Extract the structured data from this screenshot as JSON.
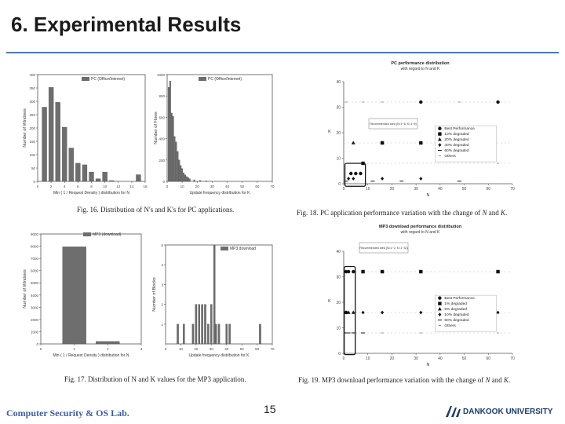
{
  "slide": {
    "title": "6. Experimental Results",
    "page_number": "15",
    "footer_left": "Computer Security & OS Lab.",
    "footer_right": "DANKOOK UNIVERSITY",
    "accent_color": "#4a79b6"
  },
  "captions": {
    "fig16": "Fig. 16.   Distribution of N's and K's for PC applications.",
    "fig17": "Fig. 17.   Distribution of N and K values for the MP3 application.",
    "fig18_prefix": "Fig. 18.   PC application performance variation with the change of ",
    "fig18_n": "N",
    "fig18_and": " and ",
    "fig18_k": "K",
    "fig18_end": ".",
    "fig19_prefix": "Fig. 19.   MP3 download performance variation with the change of ",
    "fig19_n": "N",
    "fig19_and": " and ",
    "fig19_k": "K",
    "fig19_end": "."
  },
  "chart_data": [
    {
      "id": "fig16a",
      "type": "bar",
      "legend": "PC (Office/Internet)",
      "ylabel": "Number of Windows",
      "xlabel": "Min ( 1 / Request Density ) distribution for N",
      "ylim": [
        0,
        400
      ],
      "yticks": [
        "0",
        "50",
        "100",
        "150",
        "200",
        "250",
        "300",
        "350",
        "400"
      ],
      "xticks": [
        "0",
        "2",
        "4",
        "6",
        "8",
        "10",
        "12",
        "14",
        "16"
      ],
      "x": [
        1,
        2,
        3,
        4,
        5,
        6,
        7,
        8,
        9,
        10,
        11,
        15
      ],
      "values": [
        278,
        352,
        296,
        203,
        125,
        68,
        62,
        35,
        10,
        35,
        3,
        25
      ]
    },
    {
      "id": "fig16b",
      "type": "bar",
      "legend": "PC (Office/Internet)",
      "ylabel": "Number of Flows",
      "xlabel": "Update frequency distribution for K",
      "ylim": [
        0,
        1000
      ],
      "yticks": [
        "0",
        "200",
        "400",
        "600",
        "800",
        "1000"
      ],
      "xticks": [
        "0",
        "10",
        "20",
        "30",
        "40",
        "50",
        "60",
        "70"
      ],
      "x": [
        1,
        2,
        3,
        4,
        5,
        6,
        7,
        8,
        9,
        10,
        11,
        12,
        13,
        14,
        15,
        18,
        22,
        26
      ],
      "values": [
        880,
        940,
        640,
        610,
        420,
        370,
        280,
        200,
        150,
        120,
        80,
        60,
        45,
        35,
        25,
        15,
        10,
        6
      ]
    },
    {
      "id": "fig17a",
      "type": "bar",
      "legend": "MP3 (download)",
      "ylabel": "Number of Windows",
      "xlabel": "Min ( 1 / Request Density ) distribution for N",
      "ylim": [
        0,
        9000
      ],
      "yticks": [
        "0",
        "1000",
        "2000",
        "3000",
        "4000",
        "5000",
        "6000",
        "7000",
        "8000",
        "9000"
      ],
      "xticks": [
        "0",
        "1",
        "2",
        "3"
      ],
      "x": [
        1,
        2
      ],
      "values": [
        7950,
        200
      ]
    },
    {
      "id": "fig17b",
      "type": "bar",
      "legend": "MP3 download",
      "ylabel": "Number of Blocks",
      "xlabel": "Update frequency distribution for K",
      "ylim": [
        0,
        5
      ],
      "yticks": [
        "1",
        "2",
        "3",
        "4",
        "5"
      ],
      "xticks": [
        "0",
        "10",
        "20",
        "30",
        "40",
        "50",
        "60",
        "70"
      ],
      "x": [
        8,
        12,
        18,
        20,
        22,
        24,
        26,
        28,
        30,
        32,
        33,
        35,
        40,
        42,
        62
      ],
      "values": [
        1,
        1,
        1,
        2,
        2,
        2,
        2,
        1,
        2,
        5,
        1,
        1,
        1,
        1,
        1
      ]
    },
    {
      "id": "fig18",
      "type": "scatter",
      "title": "PC performance distribution",
      "subtitle": "with regard to N and K",
      "xlabel": "N",
      "ylabel": "K",
      "xlim": [
        0,
        70
      ],
      "ylim": [
        0,
        40
      ],
      "xticks": [
        "0",
        "10",
        "20",
        "30",
        "40",
        "50",
        "60",
        "70"
      ],
      "yticks": [
        "0",
        "10",
        "20",
        "30",
        "40"
      ],
      "annotation": "Recommended area (N=1~8, K=1~8)",
      "legend": [
        "Best Performance",
        "10% degraded",
        "20% degraded",
        "40% degraded",
        "60% degraded",
        "Others"
      ],
      "series": [
        {
          "name": "Best Performance",
          "points": [
            [
              3,
              4
            ],
            [
              5,
              4
            ],
            [
              7,
              4
            ],
            [
              32,
              32
            ],
            [
              64,
              32
            ]
          ]
        },
        {
          "name": "10% degraded",
          "points": [
            [
              8,
              8
            ],
            [
              16,
              16
            ],
            [
              32,
              16
            ]
          ]
        },
        {
          "name": "20% degraded",
          "points": [
            [
              4,
              16
            ],
            [
              16,
              16
            ]
          ]
        },
        {
          "name": "40% degraded",
          "points": [
            [
              2,
              2
            ],
            [
              4,
              2
            ],
            [
              16,
              2
            ],
            [
              32,
              2
            ]
          ]
        },
        {
          "name": "60% degraded",
          "points": [
            [
              1,
              1
            ],
            [
              12,
              1
            ],
            [
              24,
              1
            ],
            [
              48,
              1
            ]
          ]
        },
        {
          "name": "Others",
          "points": [
            [
              1,
              32
            ],
            [
              8,
              32
            ],
            [
              16,
              32
            ],
            [
              48,
              32
            ],
            [
              64,
              8
            ]
          ]
        }
      ]
    },
    {
      "id": "fig19",
      "type": "scatter",
      "title": "MP3 download performance distribution",
      "subtitle": "with regard to N and K",
      "xlabel": "N",
      "ylabel": "K",
      "xlim": [
        0,
        70
      ],
      "ylim": [
        0,
        40
      ],
      "xticks": [
        "0",
        "10",
        "20",
        "30",
        "40",
        "50",
        "60",
        "70"
      ],
      "yticks": [
        "0",
        "10",
        "20",
        "30",
        "40"
      ],
      "annotation": "Recommended area (N=1~2, K=1~32)",
      "legend": [
        "Best Performance",
        "1% degraded",
        "5% degraded",
        "10% degraded",
        "50% degraded",
        "Others"
      ],
      "series": [
        {
          "name": "Best Performance",
          "points": [
            [
              1,
              32
            ],
            [
              2,
              32
            ],
            [
              4,
              32
            ],
            [
              1,
              16
            ]
          ]
        },
        {
          "name": "1% degraded",
          "points": [
            [
              8,
              32
            ],
            [
              16,
              32
            ],
            [
              32,
              32
            ],
            [
              64,
              32
            ]
          ]
        },
        {
          "name": "5% degraded",
          "points": [
            [
              1,
              16
            ],
            [
              2,
              16
            ],
            [
              4,
              16
            ]
          ]
        },
        {
          "name": "10% degraded",
          "points": [
            [
              8,
              16
            ],
            [
              16,
              16
            ],
            [
              32,
              16
            ],
            [
              64,
              16
            ]
          ]
        },
        {
          "name": "50% degraded",
          "points": [
            [
              1,
              8
            ],
            [
              2,
              8
            ],
            [
              4,
              8
            ],
            [
              8,
              8
            ]
          ]
        },
        {
          "name": "Others",
          "points": [
            [
              16,
              8
            ],
            [
              32,
              8
            ],
            [
              64,
              8
            ]
          ]
        }
      ]
    }
  ]
}
